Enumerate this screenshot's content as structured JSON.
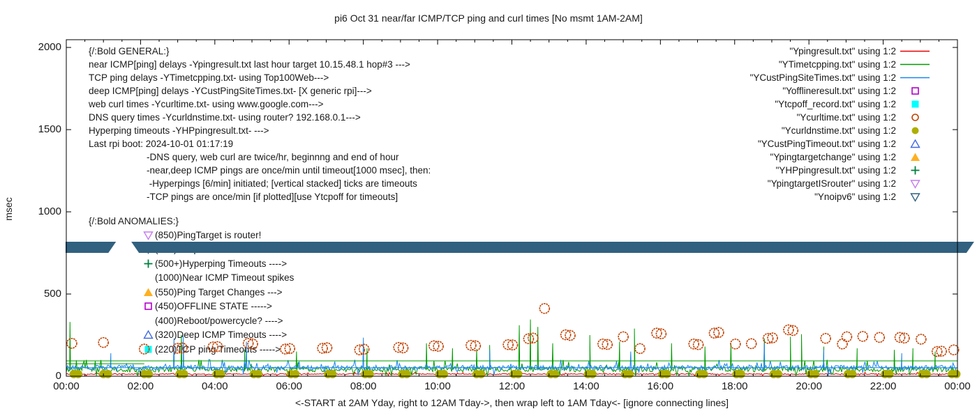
{
  "title": "pi6 Oct 31  near/far ICMP/TCP ping and curl times [No msmt 1AM-2AM]",
  "colors": {
    "red": "#e60000",
    "green": "#009b00",
    "blue": "#1c86ee",
    "magenta": "#b300cc",
    "cyan": "#00ffff",
    "rust": "#c04000",
    "olive": "#aeae00",
    "royal": "#4169e1",
    "amber": "#ffb020",
    "dark_spring_green": "#008040",
    "violet": "#c57bee",
    "dark_slate": "#31617f",
    "text": "#1a1a1a"
  },
  "general_block": {
    "header": "{/:Bold GENERAL:}",
    "lines": [
      "near ICMP[ping] delays -Ypingresult.txt last hour target 10.15.48.1 hop#3 --->",
      "TCP ping delays -YTimetcpping.txt- using Top100Web--->",
      "deep ICMP[ping] delays -YCustPingSiteTimes.txt- [X generic rpi]--->",
      "web curl times -Ycurltime.txt- using www.google.com--->",
      "DNS query times -Ycurldnstime.txt- using router? 192.168.0.1--->",
      "Hyperping timeouts -YHPpingresult.txt- --->",
      "Last rpi boot: 2024-10-01 01:17:19"
    ],
    "indented_lines": [
      "-DNS query, web curl are twice/hr, beginnng and end of hour",
      "-near,deep ICMP pings are once/min until timeout[1000 msec], then:",
      " -Hyperpings [6/min] initiated; [vertical stacked] ticks are timeouts",
      "-TCP pings are once/min [if plotted][use Ytcpoff for timeouts]"
    ]
  },
  "anomalies_block": {
    "header": "{/:Bold ANOMALIES:}",
    "items": [
      {
        "marker": "triangle-down-open",
        "color": "violet",
        "label": "(850)PingTarget is router!"
      },
      {
        "marker": "triangle-down-open",
        "color": "dark_slate",
        "label": "(785)No ipv6 fallback ---->"
      },
      {
        "marker": "plus",
        "color": "dark_spring_green",
        "label": "(500+)Hyperping Timeouts ---->"
      },
      {
        "marker": "none",
        "color": "text",
        "label": "(1000)Near ICMP Timeout spikes"
      },
      {
        "marker": "triangle-up-filled",
        "color": "amber",
        "label": "(550)Ping Target Changes --->"
      },
      {
        "marker": "square-open",
        "color": "magenta",
        "label": "(450)OFFLINE STATE ----->"
      },
      {
        "marker": "none",
        "color": "text",
        "label": "(400)Reboot/powercycle? ---->"
      },
      {
        "marker": "triangle-up-open",
        "color": "royal",
        "label": "(320)Deep ICMP Timeouts ---->"
      },
      {
        "marker": "square-filled",
        "color": "cyan",
        "label": "(220)TCP ping Timeouts ----->"
      }
    ]
  },
  "legend": {
    "items": [
      {
        "label": "\"Ypingresult.txt\" using 1:2",
        "sample": "line",
        "color": "red"
      },
      {
        "label": "\"YTimetcpping.txt\" using 1:2",
        "sample": "line",
        "color": "green"
      },
      {
        "label": "\"YCustPingSiteTimes.txt\" using 1:2",
        "sample": "line",
        "color": "blue"
      },
      {
        "label": "\"Yofflineresult.txt\" using 1:2",
        "sample": "square-open",
        "color": "magenta"
      },
      {
        "label": "\"Ytcpoff_record.txt\" using 1:2",
        "sample": "square-filled",
        "color": "cyan"
      },
      {
        "label": "\"Ycurltime.txt\" using 1:2",
        "sample": "circle-open",
        "color": "rust"
      },
      {
        "label": "\"Ycurldnstime.txt\" using 1:2",
        "sample": "circle-filled",
        "color": "olive"
      },
      {
        "label": "\"YCustPingTimeout.txt\" using 1:2",
        "sample": "triangle-up-open",
        "color": "royal"
      },
      {
        "label": "\"Ypingtargetchange\" using 1:2",
        "sample": "triangle-up-filled",
        "color": "amber"
      },
      {
        "label": "\"YHPpingresult.txt\" using 1:2",
        "sample": "plus",
        "color": "dark_spring_green"
      },
      {
        "label": "\"YpingtargetISrouter\" using 1:2",
        "sample": "triangle-down-open",
        "color": "violet"
      },
      {
        "label": "\"Ynoipv6\" using 1:2",
        "sample": "triangle-down-open",
        "color": "dark_slate"
      }
    ]
  },
  "chart_data": {
    "type": "line",
    "title": "pi6 Oct 31  near/far ICMP/TCP ping and curl times [No msmt 1AM-2AM]",
    "xlabel": "<-START at 2AM Yday, right to 12AM Tday->, then wrap left to 1AM Tday<- [ignore connecting lines]",
    "ylabel": "msec",
    "xlim": [
      0,
      24
    ],
    "ylim": [
      0,
      2047
    ],
    "grid": false,
    "legend_position": "top-right-inside",
    "y_ticks": [
      0,
      500,
      1000,
      1500,
      2000
    ],
    "x_tick_labels": [
      "00:00",
      "02:00",
      "04:00",
      "06:00",
      "08:00",
      "10:00",
      "12:00",
      "14:00",
      "16:00",
      "18:00",
      "20:00",
      "22:00",
      "00:00"
    ],
    "x_tick_hours": [
      0,
      2,
      4,
      6,
      8,
      10,
      12,
      14,
      16,
      18,
      20,
      22,
      24
    ],
    "no_measurement_gap_hours": [
      1.17,
      1.92
    ],
    "series": [
      {
        "name": "Ypingresult.txt",
        "kind": "noisy-line",
        "color": "red",
        "baseline": 13,
        "noise": 5,
        "spikes": []
      },
      {
        "name": "YTimetcpping.txt",
        "kind": "noisy-line",
        "color": "green",
        "baseline": 42,
        "noise": 28,
        "spikes": [
          [
            0.1,
            330
          ],
          [
            3.1,
            250
          ],
          [
            4.8,
            160
          ],
          [
            6.2,
            150
          ],
          [
            8.1,
            170
          ],
          [
            9.7,
            200
          ],
          [
            10.4,
            170
          ],
          [
            11.05,
            165
          ],
          [
            11.4,
            190
          ],
          [
            12.2,
            310
          ],
          [
            12.5,
            345
          ],
          [
            12.7,
            300
          ],
          [
            13.1,
            200
          ],
          [
            14.1,
            250
          ],
          [
            14.9,
            210
          ],
          [
            15.3,
            290
          ],
          [
            16.3,
            200
          ],
          [
            17.2,
            180
          ],
          [
            17.9,
            200
          ],
          [
            18.8,
            230
          ],
          [
            19.5,
            240
          ],
          [
            19.8,
            255
          ],
          [
            20.4,
            180
          ],
          [
            21.3,
            170
          ],
          [
            22.3,
            160
          ],
          [
            22.8,
            170
          ],
          [
            23.4,
            150
          ]
        ]
      },
      {
        "name": "YCustPingSiteTimes.txt",
        "kind": "noisy-line",
        "color": "blue",
        "baseline": 52,
        "noise": 24,
        "spikes": [
          [
            1.2,
            140
          ],
          [
            2.9,
            230
          ],
          [
            3.15,
            245
          ],
          [
            4.85,
            210
          ],
          [
            8.0,
            235
          ],
          [
            11.4,
            160
          ],
          [
            15.2,
            150
          ],
          [
            18.8,
            200
          ],
          [
            20.4,
            160
          ],
          [
            22.5,
            140
          ]
        ]
      },
      {
        "name": "Ycurltime.txt",
        "kind": "scatter",
        "marker": "circle-open",
        "color": "rust",
        "radius": 7,
        "points": [
          [
            0.15,
            200
          ],
          [
            1.0,
            205
          ],
          [
            2.1,
            165
          ],
          [
            3.0,
            170
          ],
          [
            3.12,
            172
          ],
          [
            3.95,
            178
          ],
          [
            4.07,
            180
          ],
          [
            4.9,
            200
          ],
          [
            5.02,
            196
          ],
          [
            5.9,
            165
          ],
          [
            6.02,
            168
          ],
          [
            6.9,
            170
          ],
          [
            7.02,
            173
          ],
          [
            7.9,
            160
          ],
          [
            8.02,
            164
          ],
          [
            8.95,
            175
          ],
          [
            9.07,
            172
          ],
          [
            9.9,
            185
          ],
          [
            10.02,
            182
          ],
          [
            10.9,
            188
          ],
          [
            11.02,
            185
          ],
          [
            11.9,
            192
          ],
          [
            12.02,
            190
          ],
          [
            12.45,
            228
          ],
          [
            12.57,
            232
          ],
          [
            12.88,
            412
          ],
          [
            13.45,
            252
          ],
          [
            13.57,
            248
          ],
          [
            14.45,
            196
          ],
          [
            14.57,
            193
          ],
          [
            15.0,
            240
          ],
          [
            15.45,
            168
          ],
          [
            15.9,
            262
          ],
          [
            16.02,
            258
          ],
          [
            16.9,
            196
          ],
          [
            17.02,
            192
          ],
          [
            17.45,
            262
          ],
          [
            17.57,
            266
          ],
          [
            18.02,
            196
          ],
          [
            18.45,
            198
          ],
          [
            18.9,
            230
          ],
          [
            19.02,
            233
          ],
          [
            19.45,
            282
          ],
          [
            19.57,
            278
          ],
          [
            20.45,
            230
          ],
          [
            20.9,
            196
          ],
          [
            21.02,
            240
          ],
          [
            21.45,
            242
          ],
          [
            21.9,
            236
          ],
          [
            22.45,
            236
          ],
          [
            22.57,
            232
          ],
          [
            23.02,
            225
          ],
          [
            23.45,
            150
          ],
          [
            23.57,
            152
          ],
          [
            23.9,
            160
          ]
        ]
      },
      {
        "name": "Ycurldnstime.txt",
        "kind": "scatter-pairs",
        "marker": "circle-filled",
        "color": "olive",
        "radius": 6,
        "value": 13,
        "pair_offset": 0.12,
        "pair_hours": [
          0.2,
          1.0,
          2.1,
          3.05,
          4.05,
          5.05,
          6.05,
          7.05,
          8.05,
          9.05,
          10.05,
          11.05,
          12.05,
          13.05,
          14.05,
          15.05,
          16.05,
          17.05,
          18.05,
          19.05,
          20.05,
          21.05,
          22.05,
          23.05,
          23.85
        ]
      },
      {
        "name": "Ynoipv6",
        "kind": "band",
        "color": "dark_slate",
        "value": 785,
        "top_value": 818,
        "bottom_value": 750,
        "segments_hours": [
          [
            -0.02,
            1.17
          ],
          [
            1.92,
            24.28
          ]
        ]
      },
      {
        "name": "connector-lines",
        "kind": "flat-lines",
        "lines": [
          {
            "color": "green",
            "value": 93,
            "from": 0,
            "to": 24
          },
          {
            "color": "green",
            "value": 76,
            "from": 0,
            "to": 2.1
          },
          {
            "color": "blue",
            "value": 52,
            "from": 0,
            "to": 24
          }
        ]
      }
    ]
  }
}
